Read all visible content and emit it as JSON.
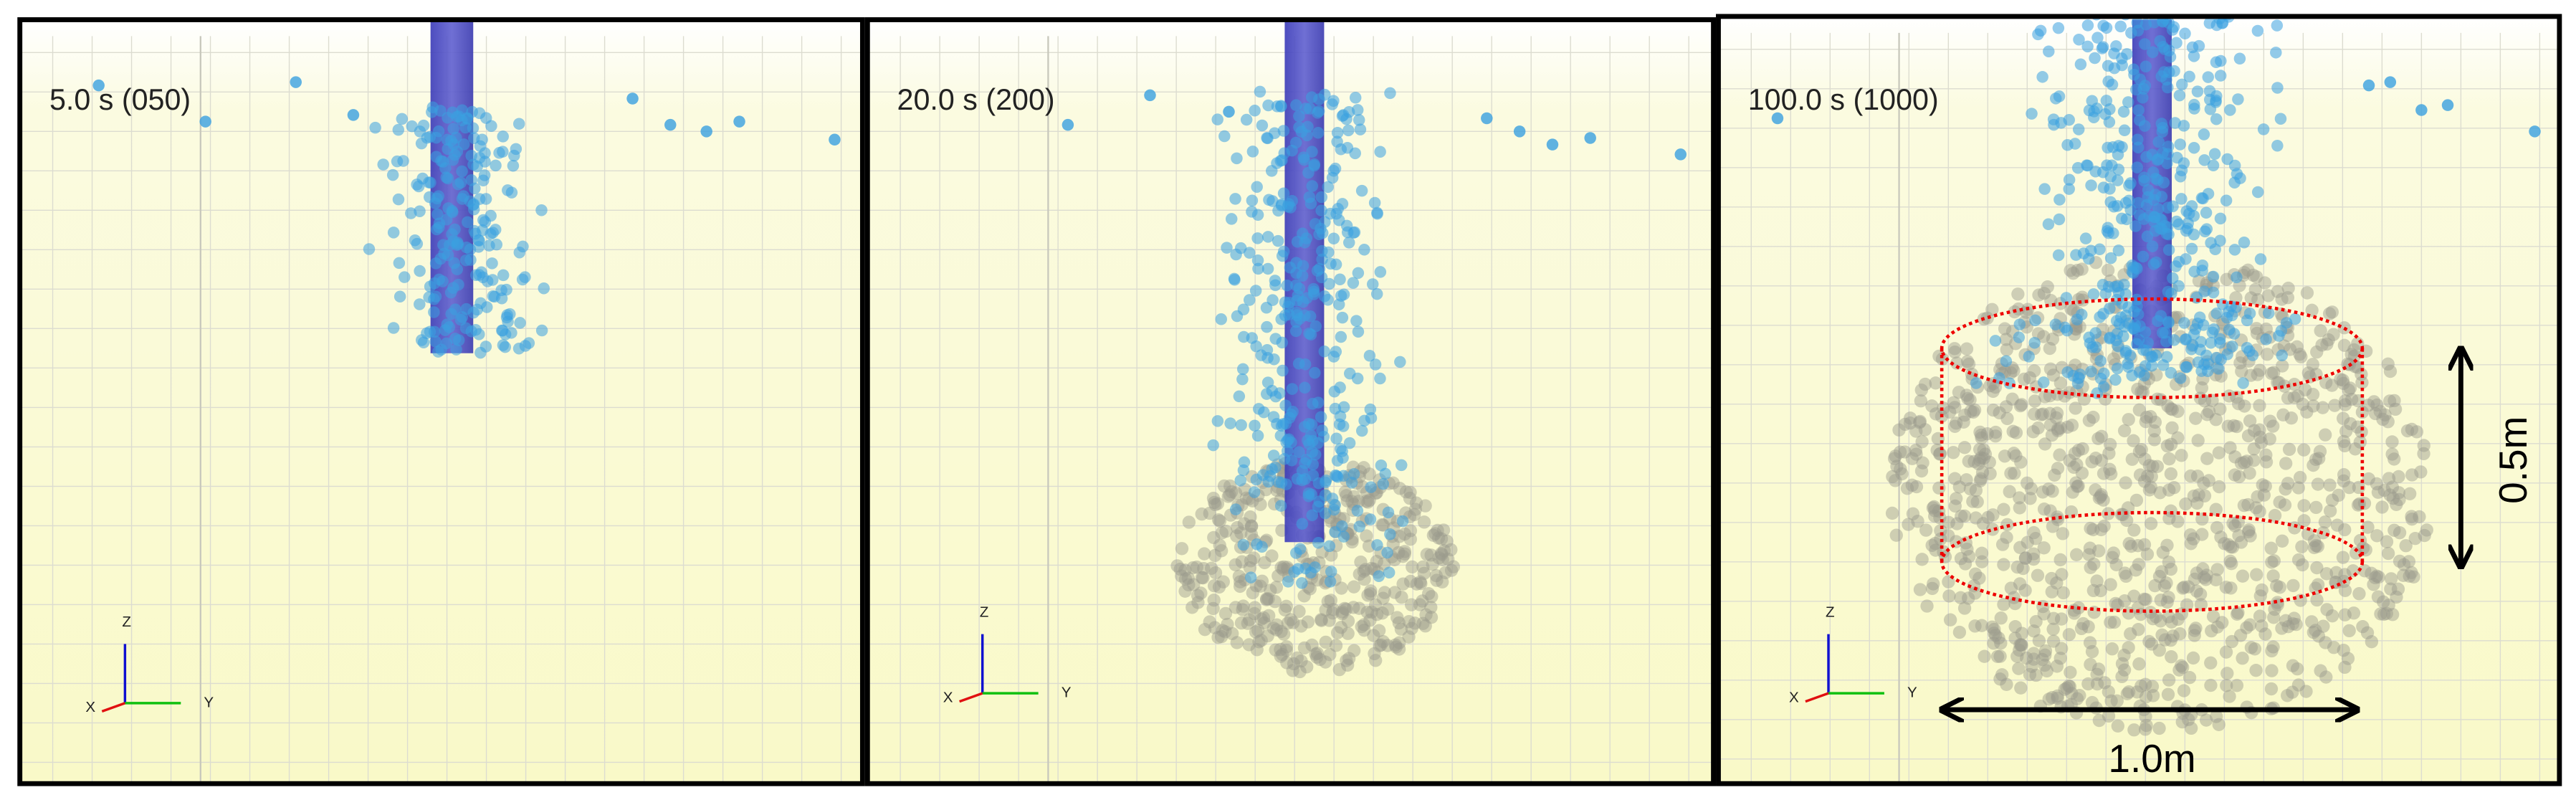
{
  "panels": [
    {
      "label": "5.0 s (050)",
      "axes": {
        "x": "X",
        "y": "Y",
        "z": "Z"
      }
    },
    {
      "label": "20.0 s (200)",
      "axes": {
        "x": "X",
        "y": "Y",
        "z": "Z"
      }
    },
    {
      "label": "100.0 s (1000)",
      "axes": {
        "x": "X",
        "y": "Y",
        "z": "Z"
      }
    }
  ],
  "dimensions": {
    "height": "0.5m",
    "width": "1.0m"
  }
}
